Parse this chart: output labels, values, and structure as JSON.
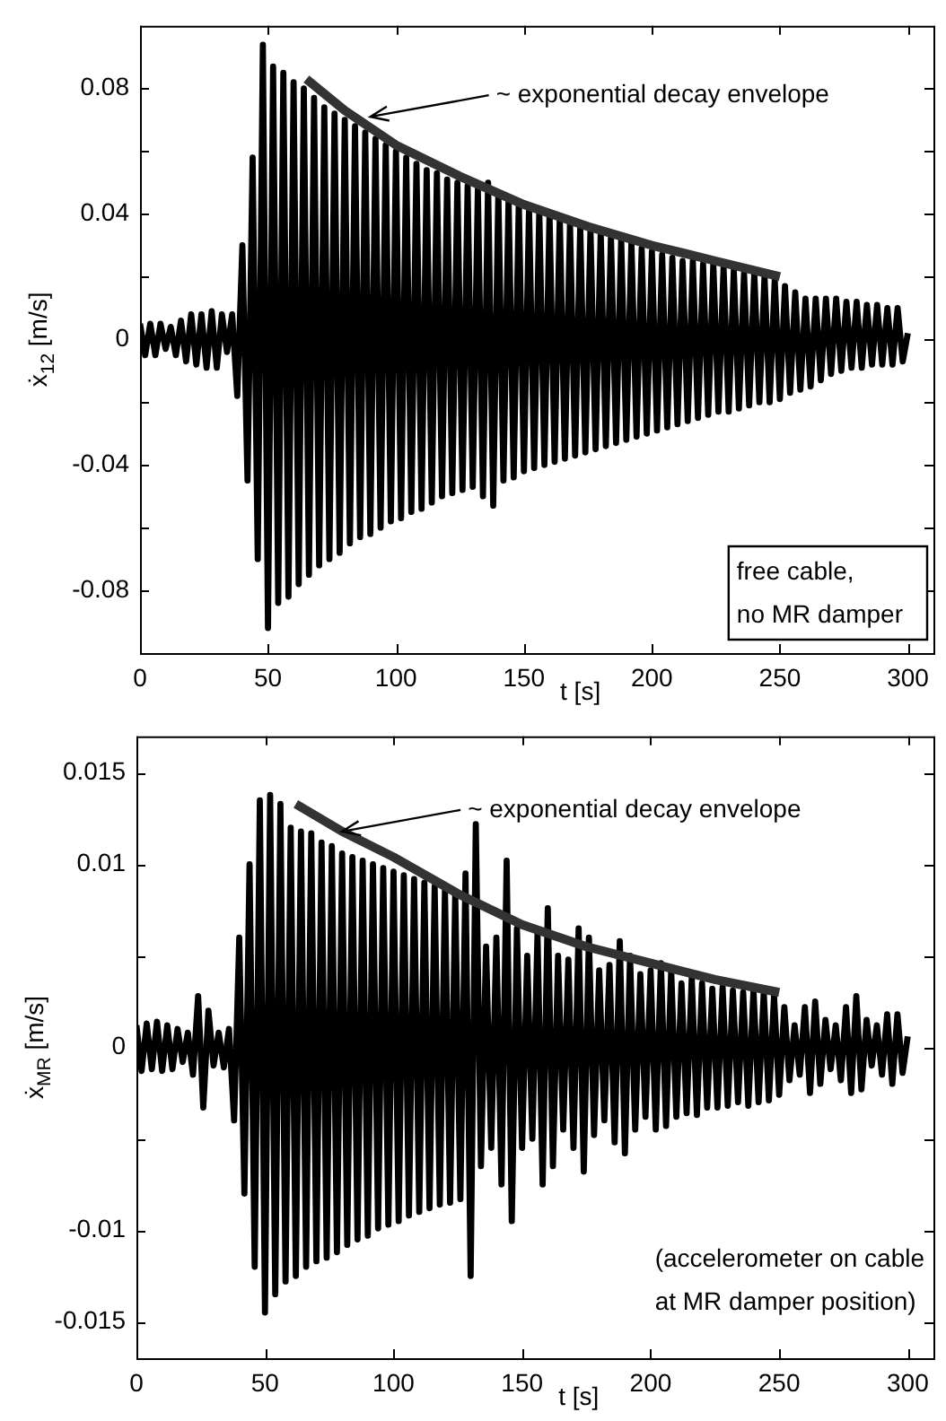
{
  "chart_data": [
    {
      "type": "line",
      "xlabel": "t [s]",
      "ylabel": "ẋ$_{12}$ [m/s]",
      "xlim": [
        0,
        310
      ],
      "xticks": [
        0,
        50,
        100,
        150,
        200,
        250,
        300
      ],
      "ylim": [
        -0.1,
        0.1
      ],
      "yticks": [
        {
          "value": -0.08,
          "label": "-0.08"
        },
        {
          "value": -0.06,
          "label": null
        },
        {
          "value": -0.04,
          "label": "-0.04"
        },
        {
          "value": -0.02,
          "label": null
        },
        0,
        {
          "value": 0.02,
          "label": null
        },
        0.04,
        {
          "value": 0.06,
          "label": null
        },
        0.08
      ],
      "legend": false,
      "annotations": [
        {
          "text": "~ exponential decay envelope",
          "x": 90,
          "y": 0.071
        },
        "free cable,\nno MR damper"
      ],
      "series": [
        {
          "color": "#000000",
          "x": [
            0,
            2,
            4,
            6,
            8,
            10,
            12,
            14,
            16,
            18,
            20,
            22,
            24,
            26,
            28,
            30,
            32,
            34,
            36,
            38,
            40,
            42,
            44,
            46,
            48,
            50,
            52,
            54,
            56,
            58,
            60,
            62,
            64,
            66,
            68,
            70,
            72,
            74,
            76,
            78,
            80,
            82,
            84,
            86,
            88,
            90,
            92,
            94,
            96,
            98,
            100,
            102,
            104,
            106,
            108,
            110,
            112,
            114,
            116,
            118,
            120,
            122,
            124,
            126,
            128,
            130,
            132,
            134,
            136,
            138,
            140,
            142,
            144,
            146,
            148,
            150,
            152,
            154,
            156,
            158,
            160,
            162,
            164,
            166,
            168,
            170,
            172,
            174,
            176,
            178,
            180,
            182,
            184,
            186,
            188,
            190,
            192,
            194,
            196,
            198,
            200,
            202,
            204,
            206,
            208,
            210,
            212,
            214,
            216,
            218,
            220,
            222,
            224,
            226,
            228,
            230,
            232,
            234,
            236,
            238,
            240,
            242,
            244,
            246,
            248,
            250,
            252,
            254,
            256,
            258,
            260,
            262,
            264,
            266,
            268,
            270,
            272,
            274,
            276,
            278,
            280,
            282,
            284,
            286,
            288,
            290,
            292,
            294,
            296,
            298,
            300
          ],
          "values": [
            0.005,
            -0.005,
            0.005,
            -0.005,
            0.005,
            -0.003,
            0.004,
            -0.005,
            0.006,
            -0.007,
            0.008,
            -0.008,
            0.008,
            -0.009,
            0.009,
            -0.009,
            0.008,
            -0.004,
            0.008,
            -0.018,
            0.03,
            -0.045,
            0.058,
            -0.07,
            0.094,
            -0.092,
            0.087,
            -0.084,
            0.085,
            -0.082,
            0.082,
            -0.078,
            0.08,
            -0.075,
            0.077,
            -0.072,
            0.074,
            -0.07,
            0.072,
            -0.068,
            0.07,
            -0.065,
            0.068,
            -0.063,
            0.066,
            -0.062,
            0.064,
            -0.06,
            0.062,
            -0.058,
            0.06,
            -0.057,
            0.058,
            -0.055,
            0.056,
            -0.054,
            0.054,
            -0.052,
            0.053,
            -0.05,
            0.051,
            -0.049,
            0.05,
            -0.048,
            0.049,
            -0.047,
            0.048,
            -0.05,
            0.05,
            -0.053,
            0.047,
            -0.045,
            0.045,
            -0.044,
            0.044,
            -0.042,
            0.042,
            -0.041,
            0.041,
            -0.04,
            0.04,
            -0.039,
            0.039,
            -0.038,
            0.037,
            -0.037,
            0.036,
            -0.036,
            0.035,
            -0.035,
            0.034,
            -0.034,
            0.033,
            -0.033,
            0.032,
            -0.032,
            0.031,
            -0.031,
            0.029,
            -0.03,
            0.028,
            -0.029,
            0.027,
            -0.028,
            0.026,
            -0.027,
            0.025,
            -0.026,
            0.025,
            -0.025,
            0.024,
            -0.024,
            0.024,
            -0.023,
            0.023,
            -0.023,
            0.022,
            -0.022,
            0.021,
            -0.021,
            0.021,
            -0.02,
            0.02,
            -0.02,
            0.019,
            -0.019,
            0.017,
            -0.017,
            0.015,
            -0.016,
            0.013,
            -0.015,
            0.013,
            -0.013,
            0.013,
            -0.011,
            0.013,
            -0.01,
            0.012,
            -0.009,
            0.012,
            -0.009,
            0.011,
            -0.008,
            0.011,
            -0.008,
            0.01,
            -0.008,
            0.01,
            -0.007,
            0.002
          ]
        },
        {
          "color": "#333333",
          "x": [
            65,
            80,
            100,
            125,
            150,
            175,
            200,
            225,
            250
          ],
          "values": [
            0.083,
            0.073,
            0.062,
            0.052,
            0.043,
            0.036,
            0.03,
            0.025,
            0.02
          ]
        }
      ]
    },
    {
      "type": "line",
      "xlabel": "t [s]",
      "ylabel": "ẋ$_{MR}$ [m/s]",
      "xlim": [
        0,
        310
      ],
      "xticks": [
        0,
        50,
        100,
        150,
        200,
        250,
        300
      ],
      "ylim": [
        -0.017,
        0.017
      ],
      "yticks": [
        -0.015,
        -0.01,
        {
          "value": -0.005,
          "label": null
        },
        0,
        {
          "value": 0.005,
          "label": null
        },
        0.01,
        0.015
      ],
      "legend": false,
      "annotations": [
        {
          "text": "~ exponential decay envelope",
          "x": 80,
          "y": 0.0118
        },
        "(accelerometer on cable\nat MR damper position)"
      ],
      "series": [
        {
          "color": "#000000",
          "x": [
            0,
            2,
            4,
            6,
            8,
            10,
            12,
            14,
            16,
            18,
            20,
            22,
            24,
            26,
            28,
            30,
            32,
            34,
            36,
            38,
            40,
            42,
            44,
            46,
            48,
            50,
            52,
            54,
            56,
            58,
            60,
            62,
            64,
            66,
            68,
            70,
            72,
            74,
            76,
            78,
            80,
            82,
            84,
            86,
            88,
            90,
            92,
            94,
            96,
            98,
            100,
            102,
            104,
            106,
            108,
            110,
            112,
            114,
            116,
            118,
            120,
            122,
            124,
            126,
            128,
            130,
            132,
            134,
            136,
            138,
            140,
            142,
            144,
            146,
            148,
            150,
            152,
            154,
            156,
            158,
            160,
            162,
            164,
            166,
            168,
            170,
            172,
            174,
            176,
            178,
            180,
            182,
            184,
            186,
            188,
            190,
            192,
            194,
            196,
            198,
            200,
            202,
            204,
            206,
            208,
            210,
            212,
            214,
            216,
            218,
            220,
            222,
            224,
            226,
            228,
            230,
            232,
            234,
            236,
            238,
            240,
            242,
            244,
            246,
            248,
            250,
            252,
            254,
            256,
            258,
            260,
            262,
            264,
            266,
            268,
            270,
            272,
            274,
            276,
            278,
            280,
            282,
            284,
            286,
            288,
            290,
            292,
            294,
            296,
            298,
            300
          ],
          "values": [
            0.0012,
            -0.0013,
            0.0013,
            -0.0012,
            0.0014,
            -0.0013,
            0.0012,
            -0.0012,
            0.001,
            -0.0008,
            0.0008,
            -0.0015,
            0.0028,
            -0.0033,
            0.002,
            -0.001,
            0.0008,
            -0.0011,
            0.001,
            -0.004,
            0.006,
            -0.008,
            0.01,
            -0.012,
            0.0135,
            -0.0145,
            0.0138,
            -0.0135,
            0.0133,
            -0.0128,
            0.012,
            -0.0125,
            0.0118,
            -0.012,
            0.0117,
            -0.0117,
            0.0112,
            -0.0115,
            0.011,
            -0.0112,
            0.0106,
            -0.0108,
            0.0104,
            -0.0105,
            0.0102,
            -0.0103,
            0.01,
            -0.0099,
            0.0098,
            -0.0097,
            0.0096,
            -0.0095,
            0.0094,
            -0.0092,
            0.0092,
            -0.009,
            0.009,
            -0.0088,
            0.0088,
            -0.0086,
            0.0086,
            -0.0085,
            0.0084,
            -0.0083,
            0.0095,
            -0.0125,
            0.0122,
            -0.0065,
            0.0055,
            -0.0055,
            0.006,
            -0.0075,
            0.0102,
            -0.0095,
            0.0065,
            -0.0055,
            0.005,
            -0.005,
            0.0062,
            -0.0075,
            0.0076,
            -0.0065,
            0.005,
            -0.0045,
            0.0048,
            -0.0055,
            0.0065,
            -0.0068,
            0.006,
            -0.0048,
            0.0042,
            -0.004,
            0.0045,
            -0.0052,
            0.0058,
            -0.0058,
            0.005,
            -0.0045,
            0.004,
            -0.0038,
            0.0042,
            -0.0045,
            0.0046,
            -0.0043,
            0.0042,
            -0.0038,
            0.0035,
            -0.0036,
            0.0038,
            -0.0037,
            0.0035,
            -0.0033,
            0.0032,
            -0.0033,
            0.0033,
            -0.0032,
            0.0031,
            -0.003,
            0.003,
            -0.0032,
            0.0031,
            -0.003,
            0.003,
            -0.0029,
            0.0028,
            -0.0026,
            0.0022,
            -0.0018,
            0.0012,
            -0.0015,
            0.0022,
            -0.0025,
            0.0025,
            -0.002,
            0.0015,
            -0.0012,
            0.0012,
            -0.0018,
            0.0022,
            -0.0025,
            0.0028,
            -0.0023,
            0.0015,
            -0.001,
            0.0012,
            -0.0015,
            0.0018,
            -0.002,
            0.0018,
            -0.0014,
            0.0006
          ]
        },
        {
          "color": "#333333",
          "x": [
            62,
            80,
            100,
            125,
            150,
            175,
            200,
            225,
            250
          ],
          "values": [
            0.0133,
            0.0118,
            0.0104,
            0.0084,
            0.0067,
            0.0055,
            0.0046,
            0.0037,
            0.003
          ]
        }
      ]
    }
  ]
}
